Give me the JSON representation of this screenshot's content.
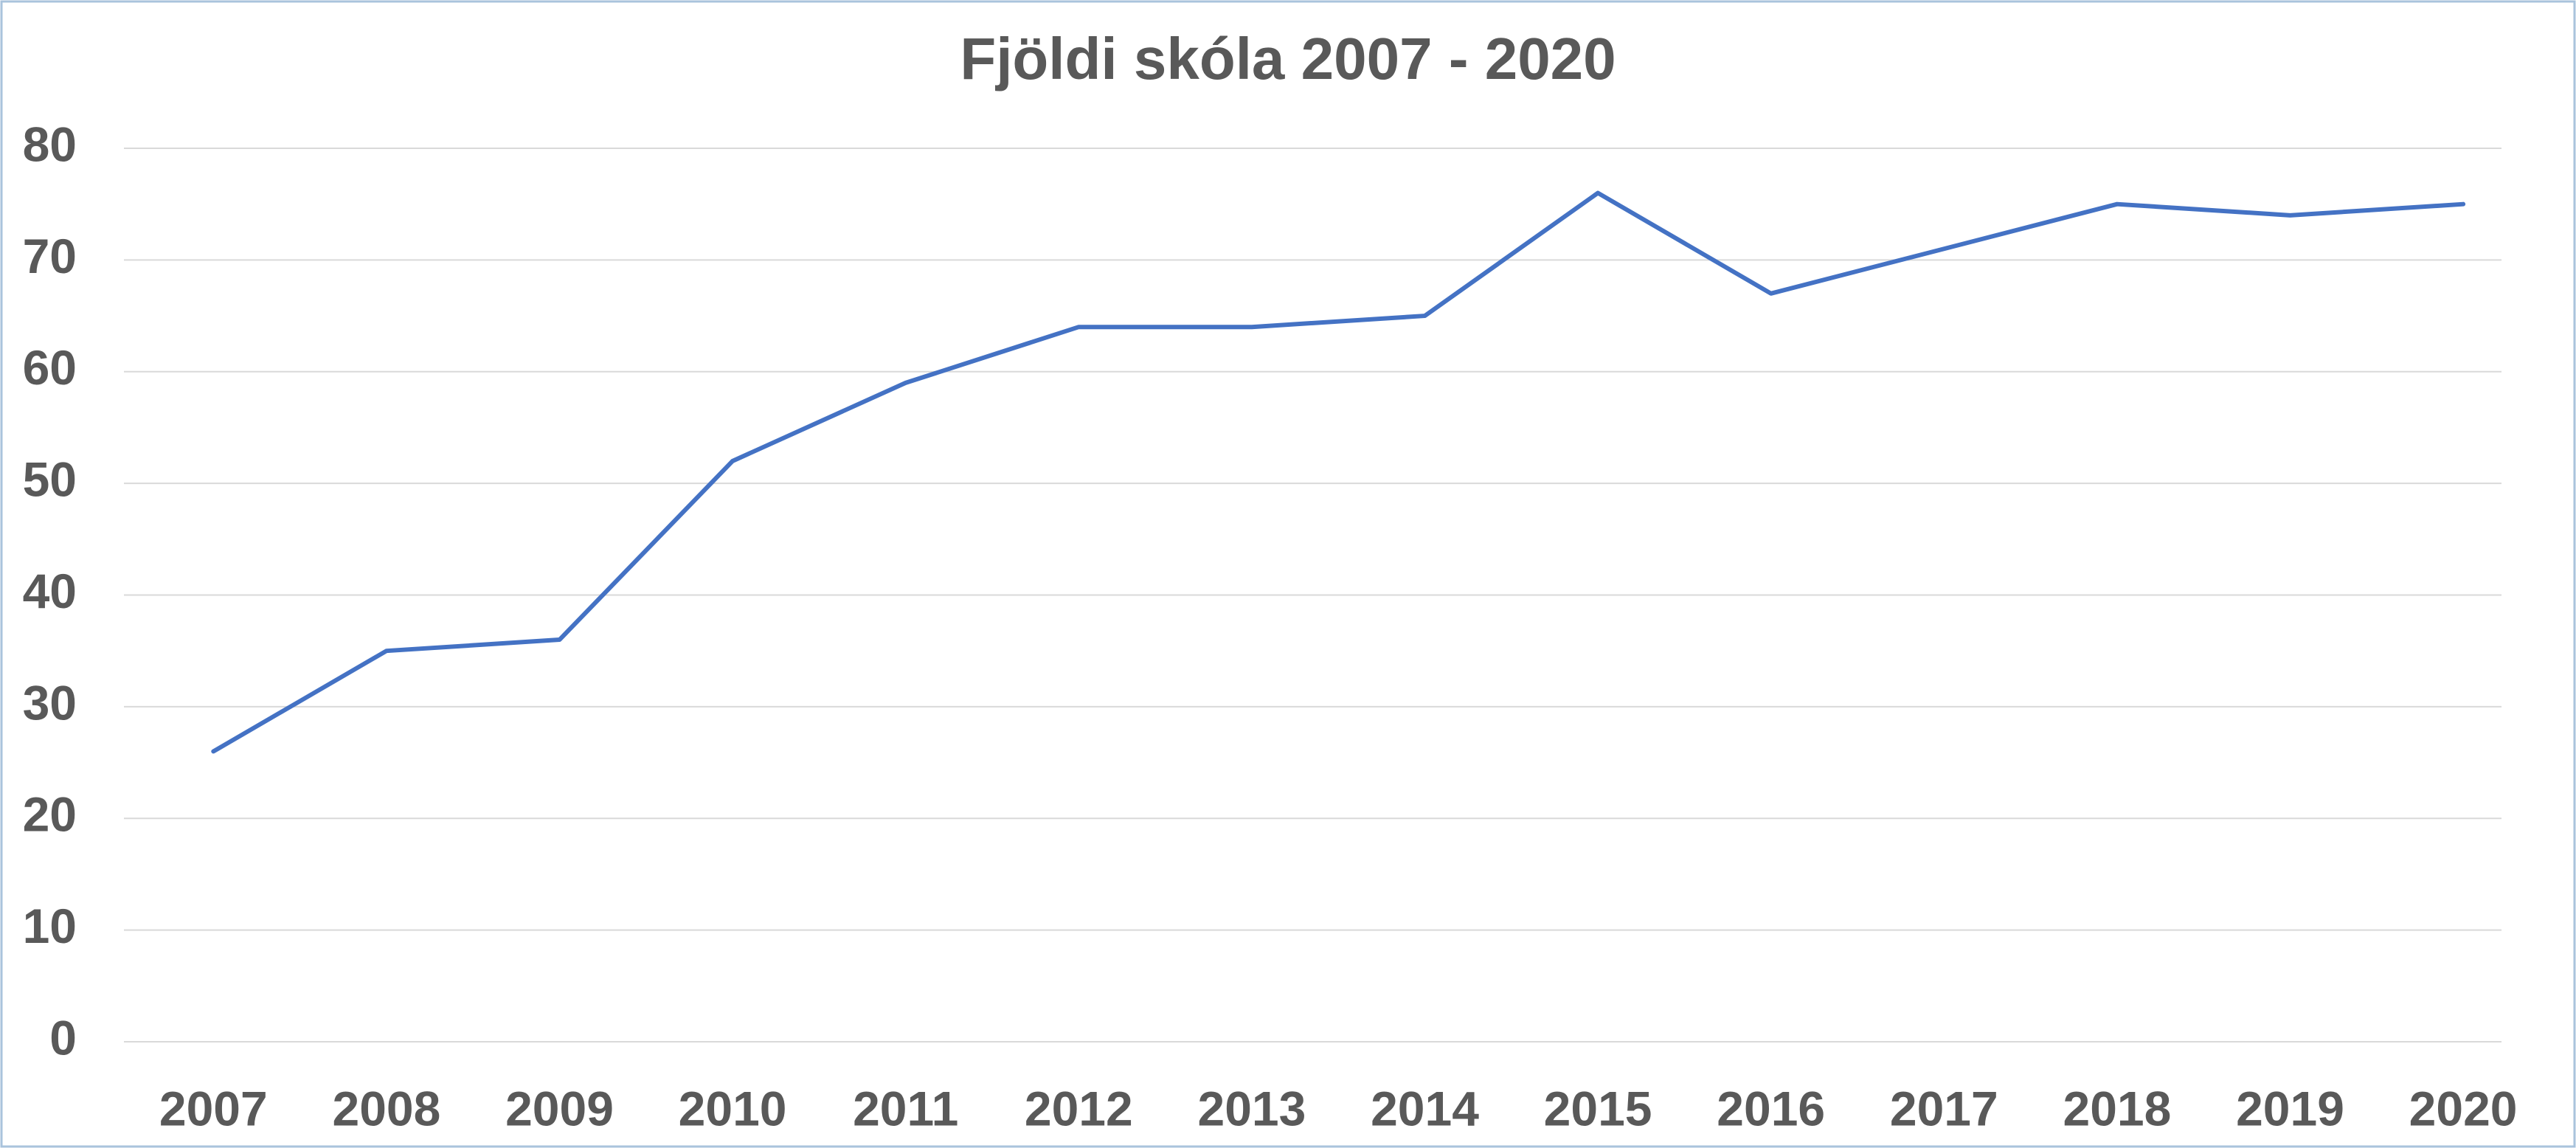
{
  "chart_data": {
    "type": "line",
    "title": "Fjöldi skóla 2007 - 2020",
    "categories": [
      "2007",
      "2008",
      "2009",
      "2010",
      "2011",
      "2012",
      "2013",
      "2014",
      "2015",
      "2016",
      "2017",
      "2018",
      "2019",
      "2020"
    ],
    "values": [
      26,
      35,
      36,
      52,
      59,
      64,
      64,
      65,
      76,
      67,
      71,
      75,
      74,
      75
    ],
    "color": "#4472c4",
    "ylim": [
      0,
      80
    ],
    "yticks": [
      0,
      10,
      20,
      30,
      40,
      50,
      60,
      70,
      80
    ],
    "grid": true
  }
}
